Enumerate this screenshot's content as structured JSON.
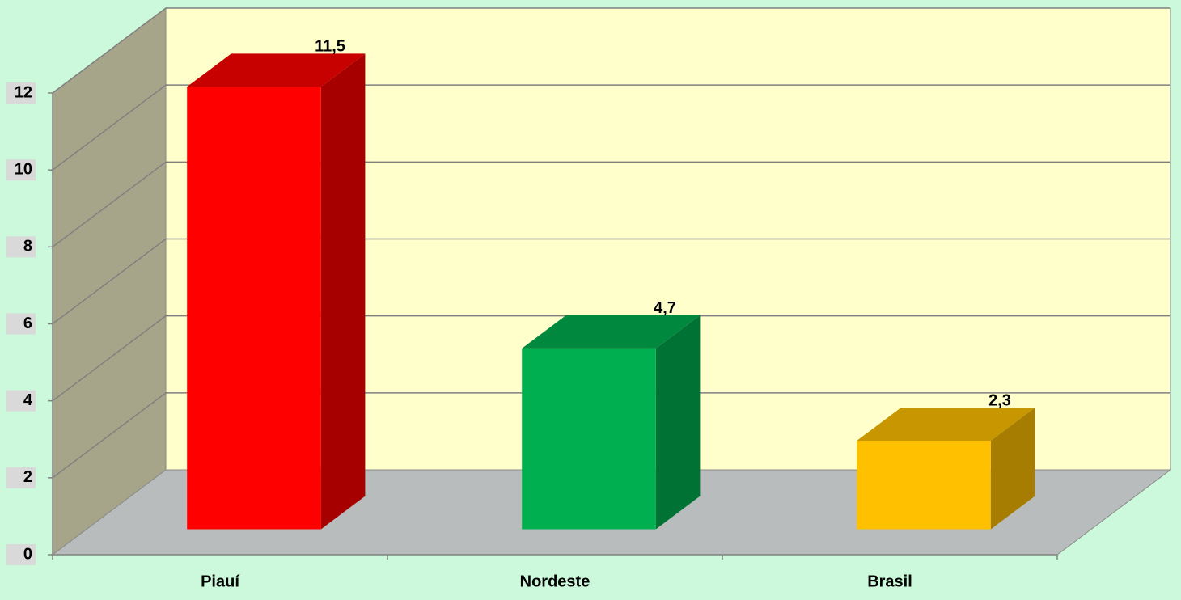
{
  "chart_data": {
    "type": "bar3d",
    "categories": [
      "Piauí",
      "Nordeste",
      "Brasil"
    ],
    "values": [
      11.5,
      4.7,
      2.3
    ],
    "value_labels": [
      "11,5",
      "4,7",
      "2,3"
    ],
    "colors": [
      "#ff0000",
      "#00b050",
      "#ffc000"
    ],
    "ylim": [
      0,
      12
    ],
    "yticks": [
      0,
      2,
      4,
      6,
      8,
      10,
      12
    ],
    "grid": true
  }
}
